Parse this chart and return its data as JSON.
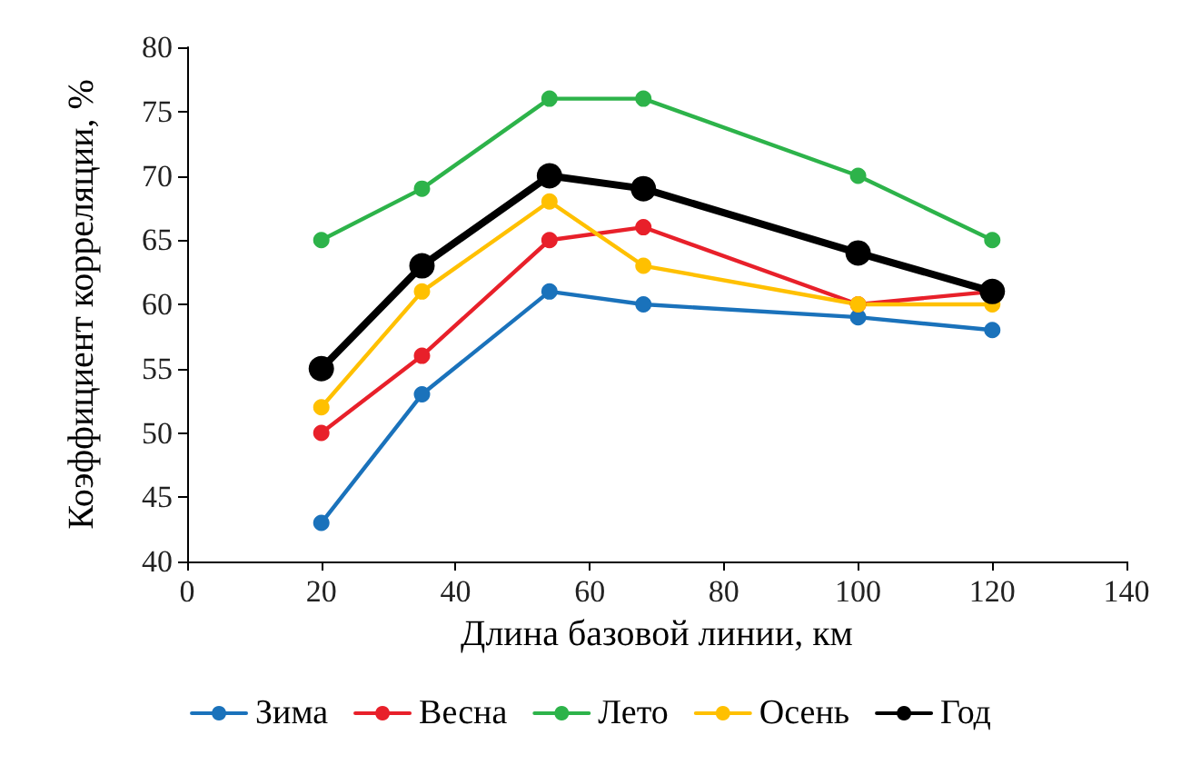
{
  "chart_data": {
    "type": "line",
    "xlabel": "Длина базовой линии, км",
    "ylabel": "Коэффициент корреляции, %",
    "x": [
      20,
      35,
      54,
      68,
      100,
      120
    ],
    "series": [
      {
        "name": "Зима",
        "color": "#1a72bb",
        "values": [
          43,
          53,
          61,
          60,
          59,
          58
        ]
      },
      {
        "name": "Весна",
        "color": "#e8202a",
        "values": [
          50,
          56,
          65,
          66,
          60,
          61
        ]
      },
      {
        "name": "Лето",
        "color": "#2db34a",
        "values": [
          65,
          69,
          76,
          76,
          70,
          65
        ]
      },
      {
        "name": "Осень",
        "color": "#ffc000",
        "values": [
          52,
          61,
          68,
          63,
          60,
          60
        ]
      },
      {
        "name": "Год",
        "color": "#000000",
        "values": [
          55,
          63,
          70,
          69,
          64,
          61
        ]
      }
    ],
    "xlim": [
      0,
      140
    ],
    "xticks": [
      0,
      20,
      40,
      60,
      80,
      100,
      120,
      140
    ],
    "ylim": [
      40,
      80
    ],
    "yticks": [
      40,
      45,
      50,
      55,
      60,
      65,
      70,
      75,
      80
    ],
    "grid": false,
    "legend": "bottom",
    "marker": "circle",
    "line_style": "solid"
  }
}
